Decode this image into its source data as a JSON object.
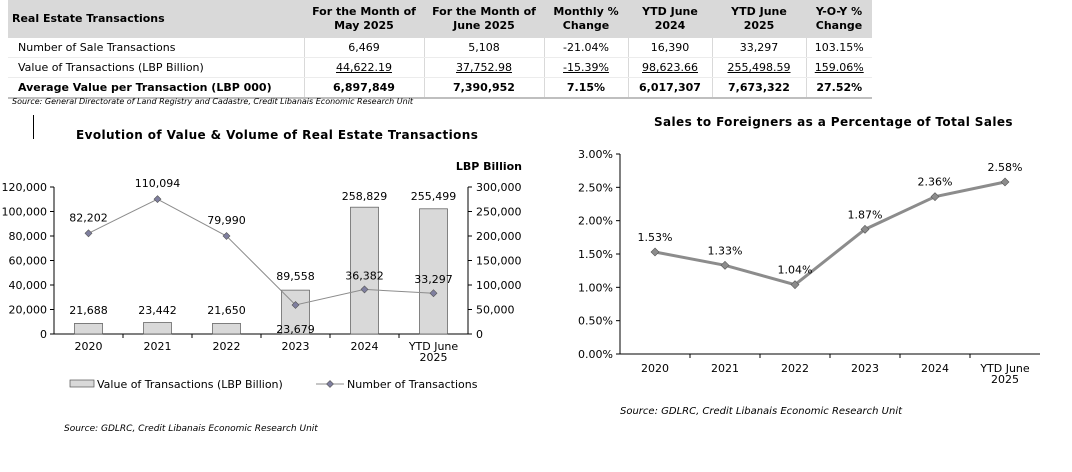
{
  "table": {
    "headers": [
      "Real Estate Transactions",
      "For the Month of May 2025",
      "For the Month of June 2025",
      "Monthly % Change",
      "YTD June 2024",
      "YTD June 2025",
      "Y-O-Y % Change"
    ],
    "header_lines": [
      [
        "Real Estate Transactions"
      ],
      [
        "For the Month of",
        "May 2025"
      ],
      [
        "For the Month of",
        "June 2025"
      ],
      [
        "Monthly %",
        "Change"
      ],
      [
        "YTD June",
        "2024"
      ],
      [
        "YTD June",
        "2025"
      ],
      [
        "Y-O-Y %",
        "Change"
      ]
    ],
    "rows": [
      {
        "label": "Number of Sale Transactions",
        "values": [
          "6,469",
          "5,108",
          "-21.04%",
          "16,390",
          "33,297",
          "103.15%"
        ]
      },
      {
        "label": "Value of Transactions (LBP Billion)",
        "values": [
          "44,622.19",
          "37,752.98",
          "-15.39%",
          "98,623.66",
          "255,498.59",
          "159.06%"
        ]
      },
      {
        "label": "Average Value per Transaction (LBP 000)",
        "values": [
          "6,897,849",
          "7,390,952",
          "7.15%",
          "6,017,307",
          "7,673,322",
          "27.52%"
        ]
      }
    ],
    "source": "Source: General Directorate of Land Registry and Cadastre, Credit Libanais Economic Research Unit"
  },
  "chart_data": [
    {
      "type": "bar",
      "title": "Evolution of Value & Volume of Real Estate Transactions",
      "categories": [
        "2020",
        "2021",
        "2022",
        "2023",
        "2024",
        "YTD June 2025"
      ],
      "series": [
        {
          "name": "Value of Transactions (LBP Billion)",
          "type": "bar",
          "axis": "right",
          "values": [
            21688,
            23442,
            21650,
            89558,
            258829,
            255499
          ],
          "color": "#d9d9d9"
        },
        {
          "name": "Number of Transactions",
          "type": "line",
          "axis": "left",
          "values": [
            82202,
            110094,
            79990,
            23679,
            36382,
            33297
          ],
          "color": "#8c8c8c"
        }
      ],
      "y_left": {
        "ticks": [
          "120,000",
          "100,000",
          "80,000",
          "60,000",
          "40,000",
          "20,000",
          "0"
        ],
        "range": [
          0,
          120000
        ]
      },
      "y_right": {
        "label": "LBP Billion",
        "ticks": [
          "300,000",
          "250,000",
          "200,000",
          "150,000",
          "100,000",
          "50,000",
          "0"
        ],
        "range": [
          0,
          300000
        ]
      },
      "bar_labels": [
        "21,688",
        "23,442",
        "21,650",
        "89,558",
        "258,829",
        "255,499"
      ],
      "line_labels": [
        "82,202",
        "110,094",
        "79,990",
        "23,679",
        "36,382",
        "33,297"
      ],
      "legend": "bottom",
      "source": "Source: GDLRC, Credit Libanais Economic Research Unit"
    },
    {
      "type": "line",
      "title": "Sales to Foreigners as a Percentage of Total Sales",
      "categories": [
        "2020",
        "2021",
        "2022",
        "2023",
        "2024",
        "YTD June 2025"
      ],
      "series": [
        {
          "values": [
            1.53,
            1.33,
            1.04,
            1.87,
            2.36,
            2.58
          ],
          "color": "#8c8c8c"
        }
      ],
      "labels": [
        "1.53%",
        "1.33%",
        "1.04%",
        "1.87%",
        "2.36%",
        "2.58%"
      ],
      "y_ticks": [
        "3.00%",
        "2.50%",
        "2.00%",
        "1.50%",
        "1.00%",
        "0.50%",
        "0.00%"
      ],
      "ylim": [
        0,
        3
      ],
      "source": "Source: GDLRC, Credit Libanais Economic Research Unit"
    }
  ]
}
